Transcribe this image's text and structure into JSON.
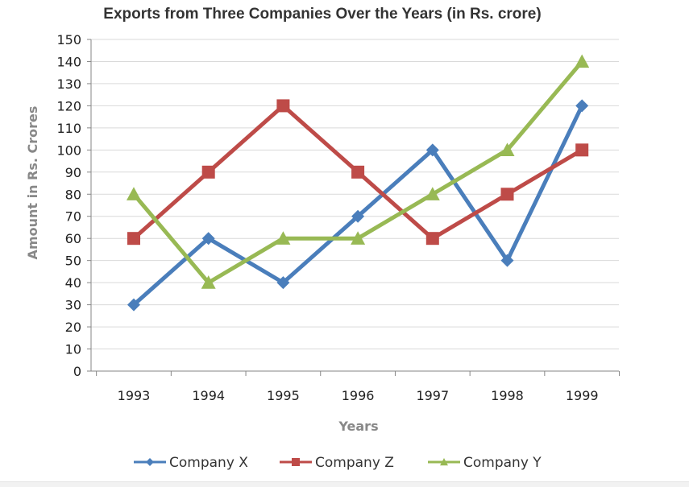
{
  "chart_data": {
    "type": "line",
    "title": "Exports from Three Companies Over the Years (in Rs. crore)",
    "xlabel": "Years",
    "ylabel": "Amount in Rs. Crores",
    "categories": [
      "1993",
      "1994",
      "1995",
      "1996",
      "1997",
      "1998",
      "1999"
    ],
    "ylim": [
      0,
      150
    ],
    "ytick_step": 10,
    "grid": true,
    "legend_position": "bottom",
    "series": [
      {
        "name": "Company X",
        "marker": "diamond",
        "color": "#4a7ebb",
        "values": [
          30,
          60,
          40,
          70,
          100,
          50,
          120
        ]
      },
      {
        "name": "Company Z",
        "marker": "square",
        "color": "#be4b48",
        "values": [
          60,
          90,
          120,
          90,
          60,
          80,
          100
        ]
      },
      {
        "name": "Company Y",
        "marker": "triangle",
        "color": "#98b954",
        "values": [
          80,
          40,
          60,
          60,
          80,
          100,
          140
        ]
      }
    ]
  }
}
